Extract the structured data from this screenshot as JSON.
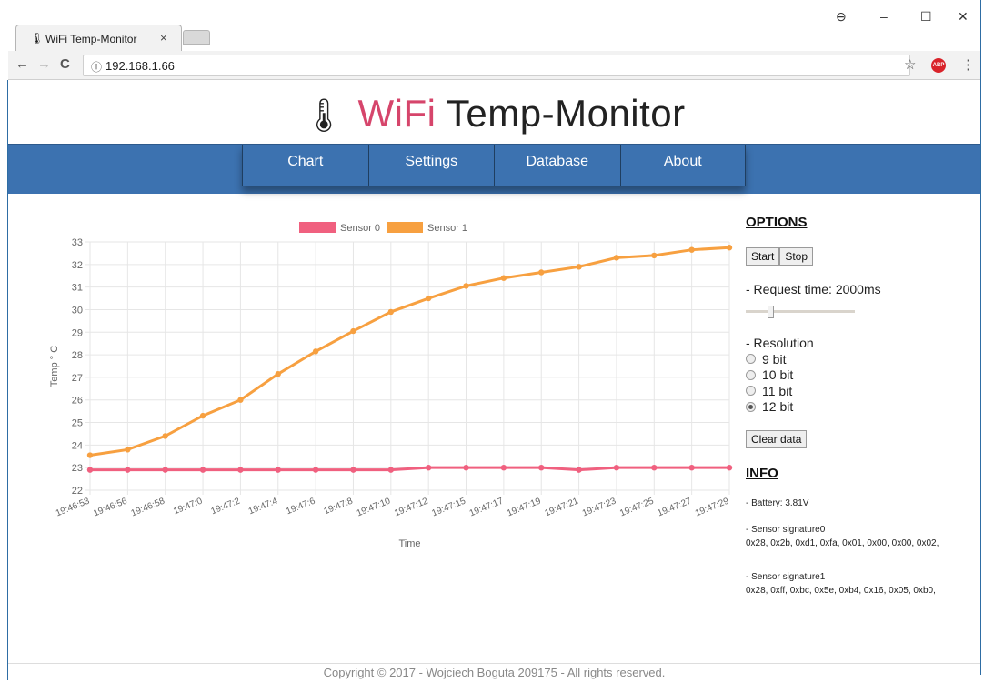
{
  "browser": {
    "tab_title": "WiFi Temp-Monitor",
    "tab_icon": "thermometer-icon",
    "close_glyph": "×",
    "url": "192.168.1.66",
    "back_glyph": "←",
    "forward_glyph": "→",
    "reload_glyph": "C",
    "info_glyph": "ⓘ",
    "star_glyph": "☆",
    "abp_label": "ABP",
    "menu_glyph": "⋮",
    "profile_glyph": "⊖",
    "minimize_glyph": "–",
    "maximize_glyph": "☐",
    "window_close_glyph": "✕"
  },
  "site": {
    "title_accent": "WiFi",
    "title_rest": " Temp-Monitor",
    "thermo_glyph": "🌡",
    "accent_color": "#d6456b",
    "nav_color": "#3c72b0"
  },
  "nav": {
    "items": [
      "Chart",
      "Settings",
      "Database",
      "About"
    ]
  },
  "options": {
    "title": "OPTIONS",
    "start_label": "Start",
    "stop_label": "Stop",
    "request_label": "- Request time: 2000ms",
    "request_time_ms": 2000,
    "resolution_label": "- Resolution",
    "resolutions": [
      "9 bit",
      "10 bit",
      "11 bit",
      "12 bit"
    ],
    "selected_resolution": "12 bit",
    "clear_label": "Clear data"
  },
  "info": {
    "title": "INFO",
    "battery": "- Battery: 3.81V",
    "sig0_label": "- Sensor signature0",
    "sig0_value": "0x28, 0x2b, 0xd1, 0xfa, 0x01, 0x00, 0x00, 0x02,",
    "sig1_label": "- Sensor signature1",
    "sig1_value": "0x28, 0xff, 0xbc, 0x5e, 0xb4, 0x16, 0x05, 0xb0,"
  },
  "footer": {
    "text": "Copyright © 2017 - Wojciech Boguta 209175 - All rights reserved."
  },
  "chart_data": {
    "type": "line",
    "xlabel": "Time",
    "ylabel": "Temp ° C",
    "ylim": [
      22,
      33
    ],
    "grid": true,
    "legend_position": "top",
    "categories": [
      "19:46:53",
      "19:46:56",
      "19:46:58",
      "19:47:0",
      "19:47:2",
      "19:47:4",
      "19:47:6",
      "19:47:8",
      "19:47:10",
      "19:47:12",
      "19:47:15",
      "19:47:17",
      "19:47:19",
      "19:47:21",
      "19:47:23",
      "19:47:25",
      "19:47:27",
      "19:47:29"
    ],
    "series": [
      {
        "name": "Sensor 0",
        "color": "#f0607f",
        "values": [
          22.9,
          22.9,
          22.9,
          22.9,
          22.9,
          22.9,
          22.9,
          22.9,
          22.9,
          23.0,
          23.0,
          23.0,
          23.0,
          22.9,
          23.0,
          23.0,
          23.0,
          23.0
        ]
      },
      {
        "name": "Sensor 1",
        "color": "#f7a040",
        "values": [
          23.55,
          23.8,
          24.4,
          25.3,
          26.0,
          27.15,
          28.15,
          29.05,
          29.9,
          30.5,
          31.05,
          31.4,
          31.65,
          31.9,
          32.3,
          32.4,
          32.65,
          32.75
        ]
      }
    ]
  }
}
